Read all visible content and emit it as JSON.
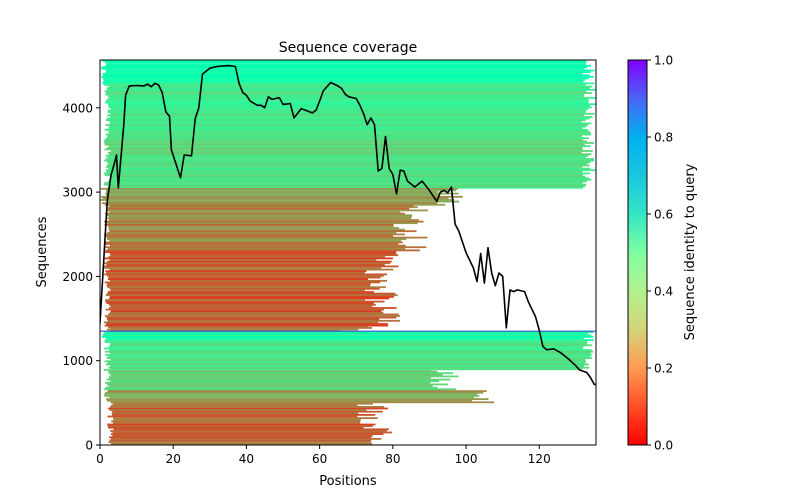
{
  "chart_data": {
    "type": "heatmap",
    "title": "Sequence coverage",
    "xlabel": "Positions",
    "ylabel": "Sequences",
    "xlim": [
      0,
      135.5
    ],
    "ylim": [
      0,
      4567
    ],
    "xticks": [
      0,
      20,
      40,
      60,
      80,
      100,
      120
    ],
    "xtick_labels": [
      "0",
      "20",
      "40",
      "60",
      "80",
      "100",
      "120"
    ],
    "yticks": [
      0,
      1000,
      2000,
      3000,
      4000
    ],
    "ytick_labels": [
      "0",
      "1000",
      "2000",
      "3000",
      "4000"
    ],
    "colorbar": {
      "label": "Sequence identity to query",
      "cmap": "rainbow_r",
      "range": [
        0,
        1
      ],
      "ticks": [
        0.0,
        0.2,
        0.4,
        0.6,
        0.8,
        1.0
      ],
      "tick_labels": [
        "0.0",
        "0.2",
        "0.4",
        "0.6",
        "0.8",
        "1.0"
      ]
    },
    "query_line": {
      "y": 1350,
      "color": "#3d4fd6"
    },
    "heatmap_bands": [
      {
        "y0": 4300,
        "y1": 4567,
        "identity": 0.47,
        "x0": 0,
        "x1": 135.5
      },
      {
        "y0": 3650,
        "y1": 4300,
        "identity": 0.37,
        "x0": 1,
        "x1": 135.5
      },
      {
        "y0": 3050,
        "y1": 3650,
        "identity": 0.33,
        "x0": 1,
        "x1": 135.5
      },
      {
        "y0": 2850,
        "y1": 3050,
        "identity": 0.22,
        "x0": 0,
        "x1": 100
      },
      {
        "y0": 2300,
        "y1": 2850,
        "identity": 0.17,
        "x0": 1,
        "x1": 90
      },
      {
        "y0": 1400,
        "y1": 2300,
        "identity": 0.12,
        "x0": 1,
        "x1": 82
      },
      {
        "y0": 1350,
        "y1": 1400,
        "identity": 0.15,
        "x0": 1,
        "x1": 75
      },
      {
        "y0": 1250,
        "y1": 1350,
        "identity": 0.46,
        "x0": 0,
        "x1": 135.5
      },
      {
        "y0": 900,
        "y1": 1250,
        "identity": 0.35,
        "x0": 1,
        "x1": 135.5
      },
      {
        "y0": 650,
        "y1": 900,
        "identity": 0.3,
        "x0": 1,
        "x1": 100
      },
      {
        "y0": 500,
        "y1": 650,
        "identity": 0.22,
        "x0": 1,
        "x1": 110
      },
      {
        "y0": 0,
        "y1": 500,
        "identity": 0.13,
        "x0": 2,
        "x1": 80
      }
    ],
    "series": [
      {
        "name": "coverage",
        "color": "#000000",
        "x": [
          0,
          2,
          3,
          4,
          4.5,
          5,
          6.5,
          7,
          8,
          10,
          12,
          13,
          14,
          15,
          16,
          17,
          18,
          19,
          19.5,
          21,
          22,
          23,
          25,
          26,
          27,
          28,
          30,
          32,
          35,
          37,
          38,
          39,
          40,
          41,
          43,
          44,
          45,
          46,
          47,
          49,
          50,
          52,
          53,
          55,
          58,
          59,
          60,
          61,
          63,
          65,
          66,
          67,
          68,
          70,
          71,
          72,
          73,
          74,
          75,
          76,
          77,
          78,
          79,
          80,
          81,
          82,
          83,
          84,
          86,
          88,
          90,
          92,
          93,
          94,
          95,
          96,
          97,
          98,
          100,
          102,
          103,
          104,
          105,
          106,
          107,
          108,
          109,
          110,
          111,
          112,
          113,
          114,
          116,
          117,
          119,
          120,
          121,
          122,
          124,
          126,
          128,
          130,
          131,
          133,
          134,
          135,
          136
        ],
        "y": [
          1450,
          2900,
          3200,
          3350,
          3440,
          3050,
          3800,
          4150,
          4260,
          4265,
          4260,
          4280,
          4250,
          4290,
          4270,
          4180,
          3950,
          3900,
          3500,
          3300,
          3170,
          3440,
          3430,
          3870,
          4000,
          4400,
          4470,
          4490,
          4500,
          4490,
          4290,
          4180,
          4150,
          4080,
          4030,
          4030,
          4000,
          4130,
          4100,
          4120,
          4040,
          4050,
          3880,
          3990,
          3940,
          3970,
          4080,
          4200,
          4300,
          4260,
          4230,
          4160,
          4130,
          4110,
          4030,
          3930,
          3800,
          3880,
          3800,
          3250,
          3280,
          3660,
          3280,
          3210,
          2980,
          3260,
          3250,
          3130,
          3060,
          3130,
          3020,
          2890,
          3000,
          3020,
          2990,
          3060,
          2620,
          2540,
          2280,
          2100,
          1940,
          2270,
          1920,
          2340,
          2040,
          1890,
          2040,
          2000,
          1390,
          1840,
          1820,
          1840,
          1820,
          1700,
          1520,
          1360,
          1170,
          1130,
          1140,
          1090,
          1020,
          940,
          890,
          860,
          800,
          720,
          710
        ]
      }
    ]
  }
}
